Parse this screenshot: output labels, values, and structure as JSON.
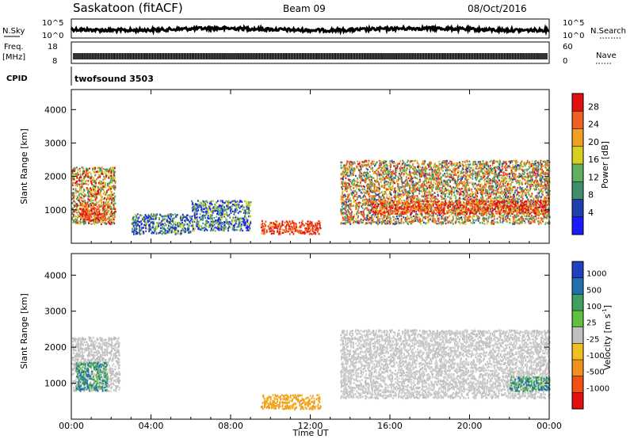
{
  "header": {
    "station": "Saskatoon (fitACF)",
    "beam": "Beam 09",
    "date": "08/Oct/2016"
  },
  "panels": {
    "nsky_label": "N.Sky",
    "nsky_tick_hi": "10^5",
    "nsky_tick_lo": "10^0",
    "nsearch_label": "N.Search",
    "nsearch_tick_hi": "10^5",
    "nsearch_tick_lo": "10^0",
    "freq_label_1": "Freq.",
    "freq_label_2": "[MHz]",
    "freq_tick_hi": "18",
    "freq_tick_lo": "8",
    "nave_label": "Nave",
    "nave_tick_hi": "60",
    "nave_tick_lo": "0",
    "cpid_label": "CPID",
    "cpid_value": "twofsound 3503"
  },
  "chart_data": [
    {
      "type": "heatmap",
      "name": "power",
      "ylabel": "Slant Range [km]",
      "ylim": [
        0,
        4600
      ],
      "yticks": [
        "1000",
        "2000",
        "3000",
        "4000"
      ],
      "colorbar_label": "Power [dB]",
      "colorbar_ticks": [
        "4",
        "8",
        "12",
        "16",
        "20",
        "24",
        "28"
      ],
      "colorbar_colors": [
        "#1a1aff",
        "#2040b0",
        "#3f8f6a",
        "#60b060",
        "#d8d020",
        "#f0a020",
        "#f06020",
        "#e01010"
      ],
      "regions": [
        {
          "x": [
            0.0,
            2.2
          ],
          "y": [
            600,
            2300
          ],
          "level": "mixed-high"
        },
        {
          "x": [
            0.4,
            1.8
          ],
          "y": [
            700,
            1200
          ],
          "level": "high"
        },
        {
          "x": [
            3.0,
            6.0
          ],
          "y": [
            300,
            900
          ],
          "level": "low"
        },
        {
          "x": [
            6.0,
            9.0
          ],
          "y": [
            400,
            1300
          ],
          "level": "low"
        },
        {
          "x": [
            9.5,
            12.5
          ],
          "y": [
            300,
            700
          ],
          "level": "high"
        },
        {
          "x": [
            13.5,
            24.0
          ],
          "y": [
            600,
            2500
          ],
          "level": "mixed"
        },
        {
          "x": [
            15.0,
            24.0
          ],
          "y": [
            900,
            1300
          ],
          "level": "high"
        }
      ]
    },
    {
      "type": "heatmap",
      "name": "velocity",
      "ylabel": "Slant Range [km]",
      "ylim": [
        0,
        4600
      ],
      "yticks": [
        "1000",
        "2000",
        "3000",
        "4000"
      ],
      "colorbar_label": "Velocity [m s^-1]",
      "colorbar_ticks": [
        "1000",
        "500",
        "100",
        "25",
        "-25",
        "-100",
        "-500",
        "-1000"
      ],
      "colorbar_colors": [
        "#2040c0",
        "#2070b0",
        "#3f9f60",
        "#60c040",
        "#c0c0c0",
        "#f0c020",
        "#f09020",
        "#f05010",
        "#e01010"
      ],
      "regions": [
        {
          "x": [
            0.0,
            2.4
          ],
          "y": [
            800,
            2300
          ],
          "level": "ground"
        },
        {
          "x": [
            0.2,
            1.8
          ],
          "y": [
            800,
            1600
          ],
          "level": "toward"
        },
        {
          "x": [
            9.5,
            12.5
          ],
          "y": [
            300,
            700
          ],
          "level": "away"
        },
        {
          "x": [
            13.5,
            24.0
          ],
          "y": [
            600,
            2500
          ],
          "level": "ground"
        },
        {
          "x": [
            22.0,
            24.0
          ],
          "y": [
            800,
            1200
          ],
          "level": "toward"
        }
      ]
    }
  ],
  "x_axis": {
    "ticks": [
      "00:00",
      "04:00",
      "08:00",
      "12:00",
      "16:00",
      "20:00",
      "00:00"
    ],
    "label": "Time UT"
  }
}
